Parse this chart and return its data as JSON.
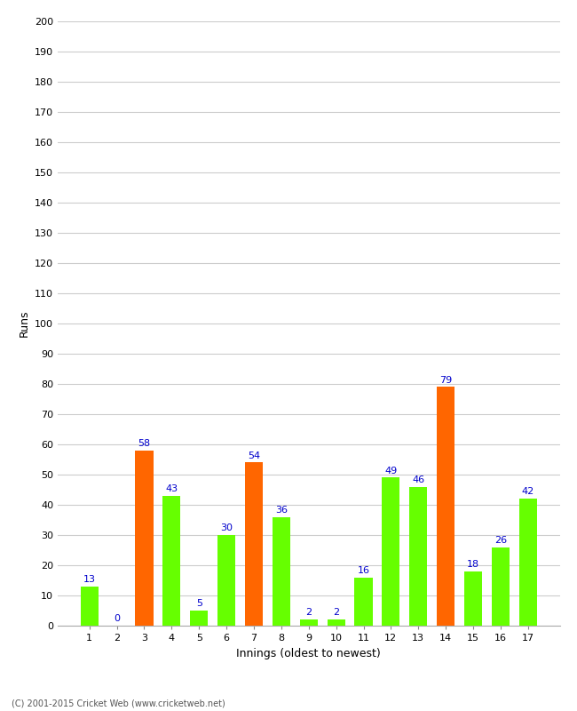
{
  "xlabel": "Innings (oldest to newest)",
  "ylabel": "Runs",
  "categories": [
    1,
    2,
    3,
    4,
    5,
    6,
    7,
    8,
    9,
    10,
    11,
    12,
    13,
    14,
    15,
    16,
    17
  ],
  "values": [
    13,
    0,
    58,
    43,
    5,
    30,
    54,
    36,
    2,
    2,
    16,
    49,
    46,
    79,
    18,
    26,
    42
  ],
  "colors": [
    "#66ff00",
    "#66ff00",
    "#ff6600",
    "#66ff00",
    "#66ff00",
    "#66ff00",
    "#ff6600",
    "#66ff00",
    "#66ff00",
    "#66ff00",
    "#66ff00",
    "#66ff00",
    "#66ff00",
    "#ff6600",
    "#66ff00",
    "#66ff00",
    "#66ff00"
  ],
  "ylim": [
    0,
    200
  ],
  "yticks": [
    0,
    10,
    20,
    30,
    40,
    50,
    60,
    70,
    80,
    90,
    100,
    110,
    120,
    130,
    140,
    150,
    160,
    170,
    180,
    190,
    200
  ],
  "label_color": "#0000cc",
  "background_color": "#ffffff",
  "grid_color": "#cccccc",
  "footer": "(C) 2001-2015 Cricket Web (www.cricketweb.net)",
  "bar_width": 0.65
}
